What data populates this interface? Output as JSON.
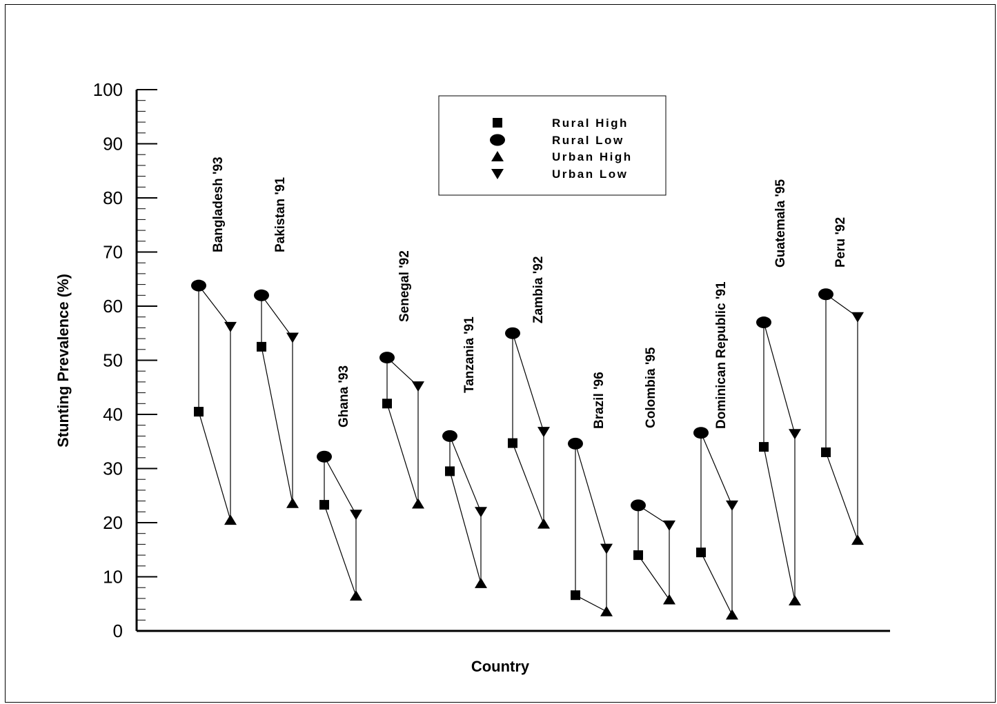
{
  "chart_data": {
    "type": "scatter",
    "xlabel": "Country",
    "ylabel": "Stunting Prevalence (%)",
    "ylim": [
      0,
      100
    ],
    "yticks": [
      0,
      10,
      20,
      30,
      40,
      50,
      60,
      70,
      80,
      90,
      100
    ],
    "grid": false,
    "legend_position": "top-center",
    "categories": [
      "Bangladesh '93",
      "Pakistan '91",
      "Ghana '93",
      "Senegal '92",
      "Tanzania '91",
      "Zambia '92",
      "Brazil '96",
      "Colombia '95",
      "Dominican Republic '91",
      "Guatemala '95",
      "Peru '92"
    ],
    "series": [
      {
        "name": "Rural High",
        "marker": "square",
        "values": [
          40.5,
          52.5,
          23.3,
          42.0,
          29.5,
          34.7,
          6.6,
          14.0,
          14.5,
          34.0,
          33.0
        ]
      },
      {
        "name": "Rural Low",
        "marker": "circle",
        "values": [
          63.8,
          62.0,
          32.2,
          50.5,
          36.0,
          55.0,
          34.6,
          23.2,
          36.6,
          57.0,
          62.2
        ]
      },
      {
        "name": "Urban High",
        "marker": "triangle-up",
        "values": [
          20.5,
          23.6,
          6.5,
          23.5,
          8.8,
          19.8,
          3.6,
          5.8,
          3.0,
          5.6,
          16.8
        ]
      },
      {
        "name": "Urban Low",
        "marker": "triangle-down",
        "values": [
          56.2,
          54.2,
          21.5,
          45.2,
          22.0,
          36.8,
          15.2,
          19.5,
          23.2,
          36.4,
          58.0
        ]
      }
    ]
  }
}
